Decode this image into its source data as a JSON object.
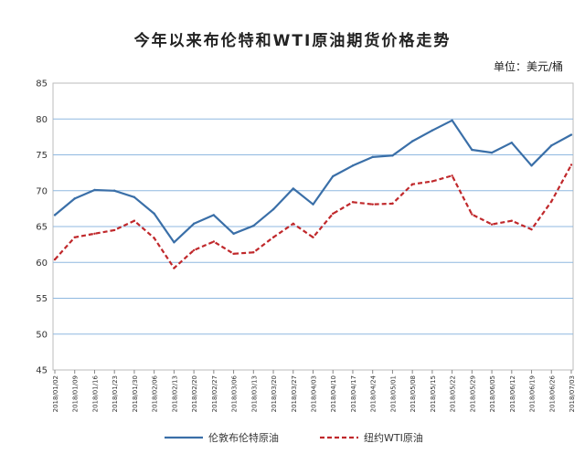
{
  "chart_data": {
    "type": "line",
    "title": "今年以来布伦特和WTI原油期货价格走势",
    "unit_label": "单位：美元/桶",
    "ylim": [
      45,
      85
    ],
    "yticks": [
      45,
      50,
      55,
      60,
      65,
      70,
      75,
      80,
      85
    ],
    "grid": true,
    "legend_position": "bottom",
    "x": [
      "2018/01/02",
      "2018/01/09",
      "2018/01/16",
      "2018/01/23",
      "2018/01/30",
      "2018/02/06",
      "2018/02/13",
      "2018/02/20",
      "2018/02/27",
      "2018/03/06",
      "2018/03/13",
      "2018/03/20",
      "2018/03/27",
      "2018/04/03",
      "2018/04/10",
      "2018/04/17",
      "2018/04/24",
      "2018/05/01",
      "2018/05/08",
      "2018/05/15",
      "2018/05/22",
      "2018/05/29",
      "2018/06/05",
      "2018/06/12",
      "2018/06/19",
      "2018/06/26",
      "2018/07/03"
    ],
    "series": [
      {
        "name": "伦敦布伦特原油",
        "color": "#3a6fa8",
        "style": "solid",
        "values": [
          66.6,
          68.9,
          70.1,
          70.0,
          69.1,
          66.8,
          62.8,
          65.4,
          66.6,
          64.0,
          65.1,
          67.4,
          70.3,
          68.1,
          72.0,
          73.5,
          74.7,
          74.9,
          76.9,
          78.4,
          79.8,
          75.7,
          75.3,
          76.7,
          73.5,
          76.3,
          77.8
        ]
      },
      {
        "name": "纽约WTI原油",
        "color": "#c0282b",
        "style": "dashed",
        "values": [
          60.4,
          63.5,
          64.0,
          64.5,
          65.8,
          63.4,
          59.2,
          61.7,
          62.9,
          61.2,
          61.4,
          63.5,
          65.4,
          63.5,
          66.8,
          68.4,
          68.1,
          68.2,
          70.9,
          71.3,
          72.1,
          66.7,
          65.3,
          65.8,
          64.6,
          68.5,
          73.6
        ]
      }
    ]
  }
}
